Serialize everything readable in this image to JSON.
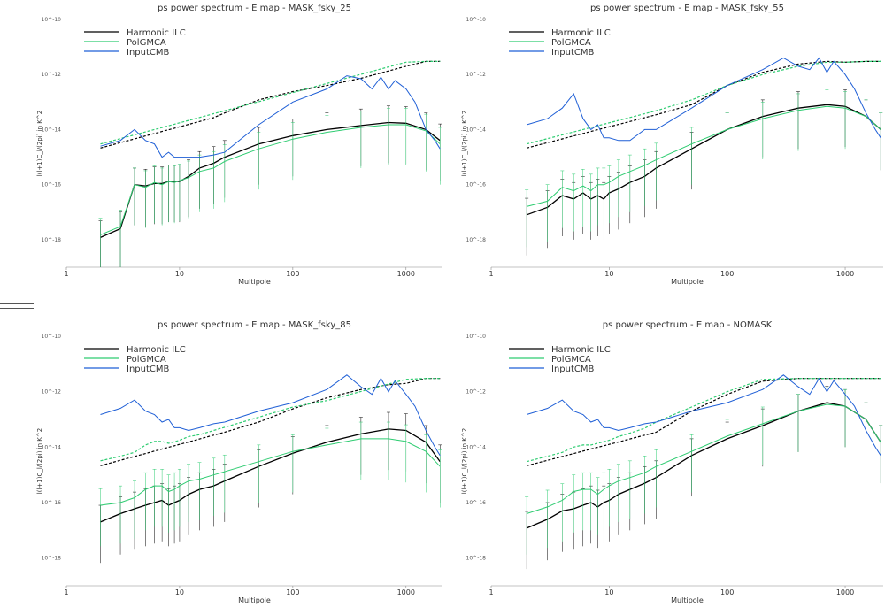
{
  "chart_data": [
    {
      "type": "line",
      "title": "ps power spectrum - E map - MASK_fsky_25",
      "xlabel": "Multipole",
      "ylabel": "l(l+1)C_l/(2pi) in K^2",
      "xscale": "log",
      "yscale": "log",
      "xlim": [
        1,
        2100
      ],
      "ylim": [
        1e-19,
        1e-10
      ],
      "xticks": [
        "1",
        "10",
        "100",
        "1000"
      ],
      "yticks": [
        "10^-10",
        "10^-12",
        "10^-14",
        "10^-16",
        "10^-18"
      ],
      "legend_placement": "top-left",
      "grid": false,
      "series": [
        {
          "name": "Harmonic  ILC",
          "color": "#000000",
          "x": [
            2,
            3,
            4,
            5,
            6,
            7,
            8,
            9,
            10,
            12,
            15,
            20,
            25,
            50,
            100,
            200,
            400,
            700,
            1000,
            1500,
            2000
          ],
          "y": [
            1.2e-18,
            2.5e-18,
            1e-16,
            9e-17,
            1.1e-16,
            1.1e-16,
            1.3e-16,
            1.3e-16,
            1.3e-16,
            2e-16,
            4e-16,
            6e-16,
            1e-15,
            3e-15,
            6e-15,
            1e-14,
            1.4e-14,
            1.8e-14,
            1.7e-14,
            1e-14,
            4e-15
          ]
        },
        {
          "name": "PolGMCA",
          "color": "#2ecc71",
          "x": [
            2,
            3,
            4,
            5,
            6,
            7,
            8,
            9,
            10,
            12,
            15,
            20,
            25,
            50,
            100,
            200,
            400,
            700,
            1000,
            1500,
            2000
          ],
          "y": [
            1.5e-18,
            3e-18,
            1e-16,
            8e-17,
            1.2e-16,
            1e-16,
            1.3e-16,
            1.2e-16,
            1.4e-16,
            1.8e-16,
            3e-16,
            4e-16,
            7e-16,
            2e-15,
            4.5e-15,
            8e-15,
            1.2e-14,
            1.5e-14,
            1.5e-14,
            9e-15,
            3e-15
          ]
        },
        {
          "name": "InputCMB",
          "color": "#1f5fd6",
          "x": [
            2,
            3,
            4,
            5,
            6,
            7,
            8,
            9,
            10,
            12,
            15,
            20,
            25,
            50,
            100,
            200,
            300,
            400,
            500,
            600,
            700,
            800,
            1000,
            1200,
            1500,
            1800,
            2000
          ],
          "y": [
            2.5e-15,
            4e-15,
            1e-14,
            4e-15,
            3e-15,
            1e-15,
            1.5e-15,
            1e-15,
            1e-15,
            1e-15,
            1e-15,
            1.2e-15,
            1.5e-15,
            1.5e-14,
            1e-13,
            3e-13,
            9e-13,
            7e-13,
            3e-13,
            8e-13,
            3e-13,
            6e-13,
            3e-13,
            1e-13,
            1e-14,
            4e-15,
            2e-15
          ]
        }
      ]
    },
    {
      "type": "line",
      "title": "ps power spectrum - E map - MASK_fsky_55",
      "xlabel": "Multipole",
      "ylabel": "l(l+1)C_l/(2pi) in K^2",
      "xscale": "log",
      "yscale": "log",
      "xlim": [
        1,
        2100
      ],
      "ylim": [
        1e-19,
        1e-10
      ],
      "xticks": [
        "1",
        "10",
        "100",
        "1000"
      ],
      "yticks": [
        "10^-10",
        "10^-12",
        "10^-14",
        "10^-16",
        "10^-18"
      ],
      "legend_placement": "top-left",
      "grid": false,
      "series": [
        {
          "name": "Harmonic  ILC",
          "color": "#000000",
          "x": [
            2,
            3,
            4,
            5,
            6,
            7,
            8,
            9,
            10,
            12,
            15,
            20,
            25,
            50,
            100,
            200,
            400,
            700,
            1000,
            1500,
            2000
          ],
          "y": [
            8e-18,
            1.5e-17,
            4e-17,
            3e-17,
            5e-17,
            3e-17,
            4e-17,
            3e-17,
            5e-17,
            7e-17,
            1.2e-16,
            2e-16,
            4e-16,
            2e-15,
            1e-14,
            3e-14,
            6e-14,
            8e-14,
            7e-14,
            3e-14,
            1e-14
          ]
        },
        {
          "name": "PolGMCA",
          "color": "#2ecc71",
          "x": [
            2,
            3,
            4,
            5,
            6,
            7,
            8,
            9,
            10,
            12,
            15,
            20,
            25,
            50,
            100,
            200,
            400,
            700,
            1000,
            1500,
            2000
          ],
          "y": [
            1.6e-17,
            2.5e-17,
            8e-17,
            6e-17,
            9e-17,
            6e-17,
            1e-16,
            1e-16,
            1.2e-16,
            2e-16,
            3e-16,
            5e-16,
            8e-16,
            3e-15,
            1e-14,
            2.5e-14,
            5e-14,
            7e-14,
            6e-14,
            3e-14,
            1e-14
          ]
        },
        {
          "name": "InputCMB",
          "color": "#1f5fd6",
          "x": [
            2,
            3,
            4,
            5,
            6,
            7,
            8,
            9,
            10,
            12,
            15,
            20,
            25,
            50,
            100,
            200,
            300,
            400,
            500,
            600,
            700,
            800,
            1000,
            1200,
            1500,
            1800,
            2000
          ],
          "y": [
            1.5e-14,
            2.5e-14,
            6e-14,
            2e-13,
            2.5e-14,
            1e-14,
            1.5e-14,
            5e-15,
            5e-15,
            4e-15,
            4e-15,
            1e-14,
            1e-14,
            6e-14,
            4e-13,
            1.5e-12,
            4e-12,
            2e-12,
            1.5e-12,
            4e-12,
            1.2e-12,
            3e-12,
            1e-12,
            3e-13,
            4e-14,
            1e-14,
            5e-15
          ]
        }
      ]
    },
    {
      "type": "line",
      "title": "ps power spectrum - E map - MASK_fsky_85",
      "xlabel": "Multipole",
      "ylabel": "l(l+1)C_l/(2pi) in K^2",
      "xscale": "log",
      "yscale": "log",
      "xlim": [
        1,
        2100
      ],
      "ylim": [
        1e-19,
        1e-10
      ],
      "xticks": [
        "1",
        "10",
        "100",
        "1000"
      ],
      "yticks": [
        "10^-10",
        "10^-12",
        "10^-14",
        "10^-16",
        "10^-18"
      ],
      "legend_placement": "top-left",
      "grid": false,
      "series": [
        {
          "name": "Harmonic  ILC",
          "color": "#000000",
          "x": [
            2,
            3,
            4,
            5,
            6,
            7,
            8,
            9,
            10,
            12,
            15,
            20,
            25,
            50,
            100,
            200,
            400,
            700,
            1000,
            1500,
            2000
          ],
          "y": [
            2e-17,
            4e-17,
            6e-17,
            8e-17,
            1e-16,
            1.2e-16,
            8e-17,
            1e-16,
            1.2e-16,
            2e-16,
            3e-16,
            4e-16,
            6e-16,
            2e-15,
            6e-15,
            1.5e-14,
            3e-14,
            4.5e-14,
            4e-14,
            1.5e-14,
            3e-15
          ]
        },
        {
          "name": "PolGMCA",
          "color": "#2ecc71",
          "x": [
            2,
            3,
            4,
            5,
            6,
            7,
            8,
            9,
            10,
            12,
            15,
            20,
            25,
            50,
            100,
            200,
            400,
            700,
            1000,
            1500,
            2000
          ],
          "y": [
            8e-17,
            1e-16,
            1.5e-16,
            3e-16,
            4e-16,
            4e-16,
            2.5e-16,
            3e-16,
            4e-16,
            6e-16,
            7e-16,
            1e-15,
            1.3e-15,
            3e-15,
            7e-15,
            1.2e-14,
            2e-14,
            2e-14,
            1.6e-14,
            7e-15,
            2e-15
          ]
        },
        {
          "name": "InputCMB",
          "color": "#1f5fd6",
          "x": [
            2,
            3,
            4,
            5,
            6,
            7,
            8,
            9,
            10,
            12,
            15,
            20,
            25,
            50,
            100,
            200,
            300,
            400,
            500,
            600,
            700,
            800,
            1000,
            1200,
            1500,
            1800,
            2000
          ],
          "y": [
            1.5e-13,
            2.5e-13,
            5e-13,
            2e-13,
            1.5e-13,
            8e-14,
            1e-13,
            5e-14,
            5e-14,
            4e-14,
            5e-14,
            7e-14,
            8e-14,
            2e-13,
            4e-13,
            1.2e-12,
            4e-12,
            1.5e-12,
            8e-13,
            3e-12,
            1e-12,
            2.5e-12,
            8e-13,
            3e-13,
            4e-14,
            1e-14,
            5e-15
          ]
        }
      ]
    },
    {
      "type": "line",
      "title": "ps power spectrum - E map - NOMASK",
      "xlabel": "Multipole",
      "ylabel": "l(l+1)C_l/(2pi) in K^2",
      "xscale": "log",
      "yscale": "log",
      "xlim": [
        1,
        2100
      ],
      "ylim": [
        1e-19,
        1e-10
      ],
      "xticks": [
        "1",
        "10",
        "100",
        "1000"
      ],
      "yticks": [
        "10^-10",
        "10^-12",
        "10^-14",
        "10^-16",
        "10^-18"
      ],
      "legend_placement": "top-left",
      "grid": false,
      "series": [
        {
          "name": "Harmonic  ILC",
          "color": "#000000",
          "x": [
            2,
            3,
            4,
            5,
            6,
            7,
            8,
            9,
            10,
            12,
            15,
            20,
            25,
            50,
            100,
            200,
            400,
            700,
            1000,
            1500,
            2000
          ],
          "y": [
            1.2e-17,
            2.5e-17,
            5e-17,
            6e-17,
            8e-17,
            1e-16,
            7e-17,
            1e-16,
            1.2e-16,
            2e-16,
            3e-16,
            5e-16,
            8e-16,
            5e-15,
            2e-14,
            6e-14,
            2e-13,
            4e-13,
            3e-13,
            1e-13,
            1.5e-14
          ]
        },
        {
          "name": "PolGMCA",
          "color": "#2ecc71",
          "x": [
            2,
            3,
            4,
            5,
            6,
            7,
            8,
            9,
            10,
            12,
            15,
            20,
            25,
            50,
            100,
            200,
            400,
            700,
            1000,
            1500,
            2000
          ],
          "y": [
            4e-17,
            7e-17,
            1.2e-16,
            2.5e-16,
            3e-16,
            3e-16,
            2e-16,
            3e-16,
            4e-16,
            6e-16,
            8e-16,
            1.2e-15,
            2e-15,
            7e-15,
            2.5e-14,
            7e-14,
            2e-13,
            3.5e-13,
            3e-13,
            1e-13,
            1.5e-14
          ]
        },
        {
          "name": "InputCMB",
          "color": "#1f5fd6",
          "x": [
            2,
            3,
            4,
            5,
            6,
            7,
            8,
            9,
            10,
            12,
            15,
            20,
            25,
            50,
            100,
            200,
            300,
            400,
            500,
            600,
            700,
            800,
            1000,
            1200,
            1500,
            1800,
            2000
          ],
          "y": [
            1.5e-13,
            2.5e-13,
            5e-13,
            2e-13,
            1.5e-13,
            8e-14,
            1e-13,
            5e-14,
            5e-14,
            4e-14,
            5e-14,
            7e-14,
            8e-14,
            2e-13,
            4e-13,
            1.2e-12,
            4e-12,
            1.5e-12,
            8e-13,
            3e-12,
            1e-12,
            2.5e-12,
            8e-13,
            3e-13,
            4e-14,
            1e-14,
            5e-15
          ]
        }
      ]
    }
  ]
}
